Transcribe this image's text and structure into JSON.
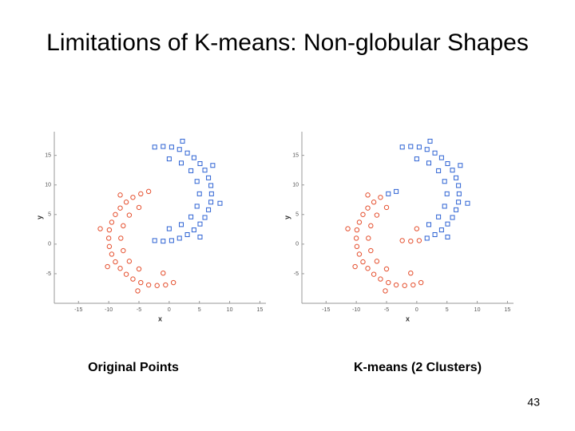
{
  "title": "Limitations of K-means: Non-globular Shapes",
  "page_number": 43,
  "chart_data": [
    {
      "type": "scatter",
      "caption": "Original Points",
      "xlabel": "x",
      "ylabel": "y",
      "xlim": [
        -19,
        16
      ],
      "ylim": [
        -10,
        19
      ],
      "xticks": [
        -15,
        -10,
        -5,
        0,
        5,
        10,
        15
      ],
      "yticks": [
        -5,
        0,
        5,
        10,
        15
      ],
      "series": [
        {
          "color": "#e5502f",
          "marker": "circle",
          "x": [
            -3.4,
            -4.7,
            -6,
            -7.1,
            -8.1,
            -8.9,
            -9.5,
            -9.9,
            -10,
            -9.9,
            -9.5,
            -8.9,
            -8.1,
            -7.1,
            -6,
            -4.7,
            -3.4,
            -2,
            -0.6,
            0.7,
            -5,
            -7.6,
            -7.6,
            -5,
            -1,
            -6.6,
            -8,
            -6.6,
            -8.1,
            -11.4,
            -10.2,
            -5.2
          ],
          "values": [
            8.9,
            8.5,
            7.9,
            7.1,
            6.1,
            5,
            3.7,
            2.4,
            1,
            -0.4,
            -1.7,
            -3,
            -4.1,
            -5.1,
            -5.9,
            -6.5,
            -6.9,
            -7,
            -6.9,
            -6.5,
            6.2,
            3.1,
            -1.1,
            -4.2,
            -4.9,
            4.9,
            1,
            -2.9,
            8.3,
            2.6,
            -3.8,
            -7.9
          ]
        },
        {
          "color": "#2d62d3",
          "marker": "square",
          "x": [
            -2.4,
            -1,
            0.4,
            1.7,
            3,
            4.1,
            5.1,
            5.9,
            6.5,
            6.9,
            7,
            6.9,
            6.5,
            5.9,
            5.1,
            4.1,
            3,
            1.7,
            0.4,
            -1,
            -2.4,
            0,
            3.6,
            5,
            3.6,
            0,
            2,
            4.6,
            4.6,
            2,
            2.2,
            7.2,
            8.4,
            5.1
          ],
          "values": [
            16.4,
            16.5,
            16.4,
            16,
            15.4,
            14.6,
            13.6,
            12.5,
            11.2,
            9.9,
            8.5,
            7.1,
            5.8,
            4.5,
            3.4,
            2.4,
            1.6,
            1,
            0.6,
            0.5,
            0.6,
            14.4,
            12.4,
            8.5,
            4.6,
            2.6,
            13.7,
            10.6,
            6.4,
            3.3,
            17.4,
            13.3,
            6.9,
            1.2
          ]
        }
      ]
    },
    {
      "type": "scatter",
      "caption": "K-means (2 Clusters)",
      "xlabel": "x",
      "ylabel": "y",
      "xlim": [
        -19,
        16
      ],
      "ylim": [
        -10,
        19
      ],
      "xticks": [
        -15,
        -10,
        -5,
        0,
        5,
        10,
        15
      ],
      "yticks": [
        -5,
        0,
        5,
        10,
        15
      ],
      "series": [
        {
          "color": "#e5502f",
          "marker": "circle",
          "x": [
            -6,
            -7.1,
            -8.1,
            -8.9,
            -9.5,
            -9.9,
            -10,
            -9.9,
            -9.5,
            -8.9,
            -8.1,
            -7.1,
            -6,
            -4.7,
            -3.4,
            -2,
            -0.6,
            0.7,
            -5,
            -7.6,
            -7.6,
            -5,
            -1,
            -6.6,
            -8,
            -6.6,
            -8.1,
            -11.4,
            -10.2,
            -5.2,
            0.4,
            -1,
            -2.4,
            0
          ],
          "values": [
            7.9,
            7.1,
            6.1,
            5,
            3.7,
            2.4,
            1,
            -0.4,
            -1.7,
            -3,
            -4.1,
            -5.1,
            -5.9,
            -6.5,
            -6.9,
            -7,
            -6.9,
            -6.5,
            6.2,
            3.1,
            -1.1,
            -4.2,
            -4.9,
            4.9,
            1,
            -2.9,
            8.3,
            2.6,
            -3.8,
            -7.9,
            0.6,
            0.5,
            0.6,
            2.6
          ]
        },
        {
          "color": "#2d62d3",
          "marker": "square",
          "x": [
            -2.4,
            -1,
            0.4,
            1.7,
            3,
            4.1,
            5.1,
            5.9,
            6.5,
            6.9,
            7,
            6.9,
            6.5,
            5.9,
            5.1,
            4.1,
            3,
            1.7,
            0,
            3.6,
            5,
            3.6,
            2,
            4.6,
            4.6,
            2,
            2.2,
            7.2,
            8.4,
            5.1,
            -3.4,
            -4.7
          ],
          "values": [
            16.4,
            16.5,
            16.4,
            16,
            15.4,
            14.6,
            13.6,
            12.5,
            11.2,
            9.9,
            8.5,
            7.1,
            5.8,
            4.5,
            3.4,
            2.4,
            1.6,
            1,
            14.4,
            12.4,
            8.5,
            4.6,
            13.7,
            10.6,
            6.4,
            3.3,
            17.4,
            13.3,
            6.9,
            1.2,
            8.9,
            8.5
          ]
        }
      ]
    }
  ]
}
